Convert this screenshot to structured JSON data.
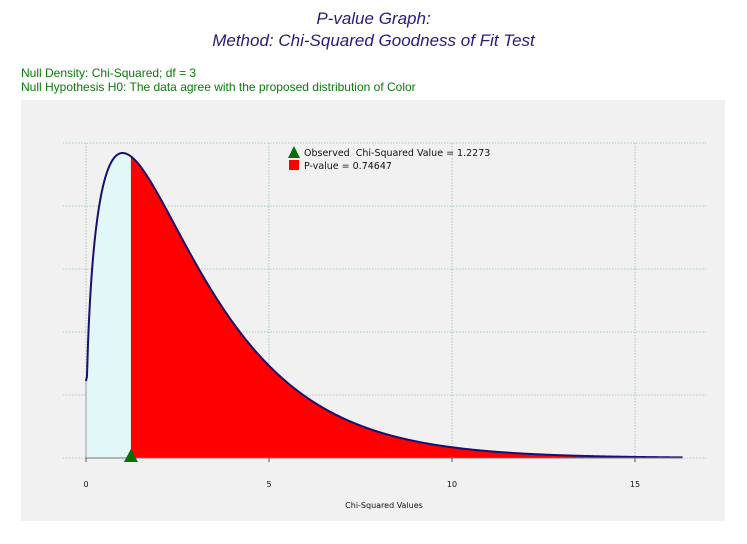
{
  "header": {
    "title": "P-value Graph:",
    "subtitle": "Method: Chi-Squared Goodness of Fit Test",
    "null_density": "Null Density: Chi-Squared; df = 3",
    "null_hypothesis": "Null Hypothesis H0: The data agree with the proposed distribution of Color"
  },
  "chart_data": {
    "type": "area",
    "distribution": "chi-squared",
    "df": 3,
    "observed_value": 1.2273,
    "p_value": 0.74647,
    "xlabel": "Chi-Squared Values",
    "ylabel": "",
    "xlim": [
      0,
      16.3
    ],
    "x_ticks": [
      0,
      5,
      10,
      15
    ],
    "x_tick_labels": [
      "0",
      "5",
      "10",
      "15"
    ],
    "grid": true,
    "legend": [
      {
        "marker": "triangle",
        "label": "Observed  Chi-Squared Value = 1.2273"
      },
      {
        "marker": "square",
        "label": "P-value = 0.74647"
      }
    ],
    "legend_placement": "top-center",
    "colors": {
      "curve": "#1a0f6e",
      "tail_fill": "#ff0000",
      "body_fill": "#e2f7f7",
      "observed_marker": "#0a6e0a",
      "grid": "#8fbfaa"
    }
  }
}
